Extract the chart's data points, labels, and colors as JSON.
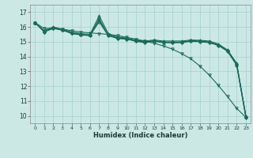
{
  "xlabel": "Humidex (Indice chaleur)",
  "bg_color": "#cce8e5",
  "grid_color": "#aad4d0",
  "line_color": "#1a6b5a",
  "xlim": [
    -0.5,
    23.5
  ],
  "ylim": [
    9.5,
    17.5
  ],
  "yticks": [
    10,
    11,
    12,
    13,
    14,
    15,
    16,
    17
  ],
  "xticks": [
    0,
    1,
    2,
    3,
    4,
    5,
    6,
    7,
    8,
    9,
    10,
    11,
    12,
    13,
    14,
    15,
    16,
    17,
    18,
    19,
    20,
    21,
    22,
    23
  ],
  "lines": [
    {
      "x": [
        0,
        1,
        2,
        3,
        4,
        5,
        6,
        7,
        8,
        9,
        10,
        11,
        12,
        13,
        14,
        15,
        16,
        17,
        18,
        19,
        20,
        21,
        22,
        23
      ],
      "y": [
        16.3,
        15.75,
        16.0,
        15.85,
        15.65,
        15.55,
        15.5,
        16.75,
        15.55,
        15.32,
        15.25,
        15.1,
        15.05,
        15.12,
        15.05,
        15.05,
        15.05,
        15.12,
        15.1,
        15.05,
        14.85,
        14.45,
        13.55,
        10.0
      ],
      "marker": "^",
      "ms": 2.5
    },
    {
      "x": [
        0,
        1,
        2,
        3,
        4,
        5,
        6,
        7,
        8,
        9,
        10,
        11,
        12,
        13,
        14,
        15,
        16,
        17,
        18,
        19,
        20,
        21,
        22,
        23
      ],
      "y": [
        16.3,
        15.7,
        15.95,
        15.82,
        15.6,
        15.5,
        15.45,
        16.55,
        15.45,
        15.28,
        15.22,
        15.08,
        15.0,
        15.08,
        14.98,
        14.98,
        14.98,
        15.08,
        15.05,
        14.98,
        14.8,
        14.4,
        13.48,
        9.95
      ],
      "marker": "P",
      "ms": 2.5
    },
    {
      "x": [
        0,
        1,
        2,
        3,
        4,
        5,
        6,
        7,
        8,
        9,
        10,
        11,
        12,
        13,
        14,
        15,
        16,
        17,
        18,
        19,
        20,
        21,
        22,
        23
      ],
      "y": [
        16.3,
        15.68,
        15.92,
        15.8,
        15.58,
        15.48,
        15.43,
        16.45,
        15.43,
        15.25,
        15.2,
        15.06,
        14.97,
        15.06,
        14.97,
        14.96,
        14.97,
        15.06,
        15.03,
        14.97,
        14.78,
        14.38,
        13.44,
        9.92
      ],
      "marker": "s",
      "ms": 2.0
    },
    {
      "x": [
        0,
        1,
        2,
        3,
        4,
        5,
        6,
        7,
        8,
        9,
        10,
        11,
        12,
        13,
        14,
        15,
        16,
        17,
        18,
        19,
        20,
        21,
        22,
        23
      ],
      "y": [
        16.3,
        15.66,
        15.9,
        15.78,
        15.56,
        15.46,
        15.41,
        16.35,
        15.41,
        15.22,
        15.18,
        15.03,
        14.94,
        15.03,
        14.94,
        14.93,
        14.94,
        15.03,
        15.0,
        14.94,
        14.75,
        14.35,
        13.41,
        9.9
      ],
      "marker": "D",
      "ms": 2.0
    },
    {
      "x": [
        0,
        1,
        2,
        3,
        4,
        5,
        6,
        7,
        8,
        9,
        10,
        11,
        12,
        13,
        14,
        15,
        16,
        17,
        18,
        19,
        20,
        21,
        22,
        23
      ],
      "y": [
        16.3,
        15.9,
        15.9,
        15.85,
        15.75,
        15.65,
        15.6,
        15.55,
        15.5,
        15.42,
        15.3,
        15.18,
        15.05,
        14.9,
        14.72,
        14.5,
        14.2,
        13.85,
        13.35,
        12.75,
        12.05,
        11.3,
        10.5,
        9.9
      ],
      "marker": "v",
      "ms": 2.5
    }
  ]
}
